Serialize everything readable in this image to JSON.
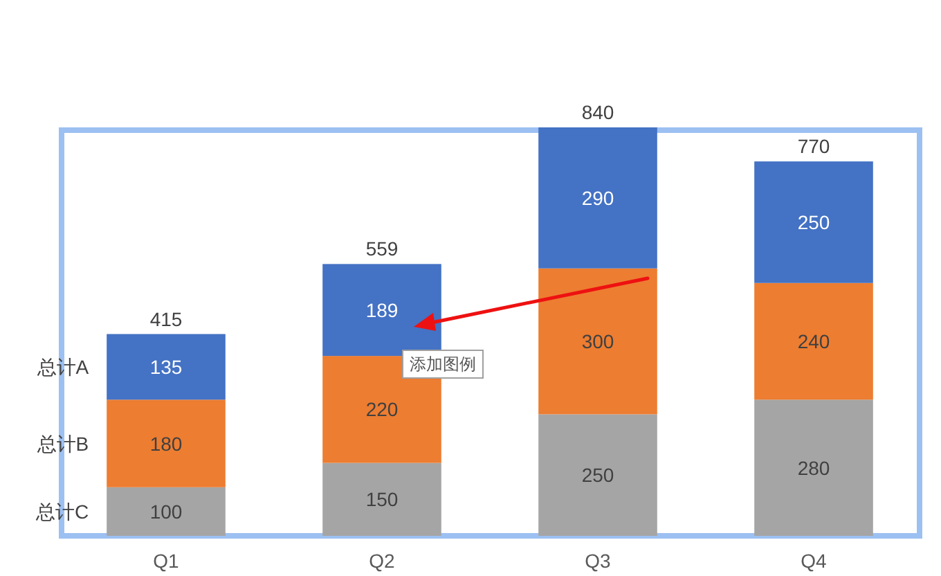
{
  "chart_data": {
    "type": "bar",
    "stacked": true,
    "categories": [
      "Q1",
      "Q2",
      "Q3",
      "Q4"
    ],
    "series": [
      {
        "name": "总计C",
        "color": "#a5a5a5",
        "values": [
          100,
          150,
          250,
          280
        ]
      },
      {
        "name": "总计B",
        "color": "#ed7d31",
        "values": [
          180,
          220,
          300,
          240
        ]
      },
      {
        "name": "总计A",
        "color": "#4472c4",
        "values": [
          135,
          189,
          290,
          250
        ]
      }
    ],
    "data_labels": true,
    "totals": [
      "415",
      "559",
      "840",
      "770"
    ],
    "tick_labels": "x",
    "annotations": [
      "添加图例"
    ]
  }
}
